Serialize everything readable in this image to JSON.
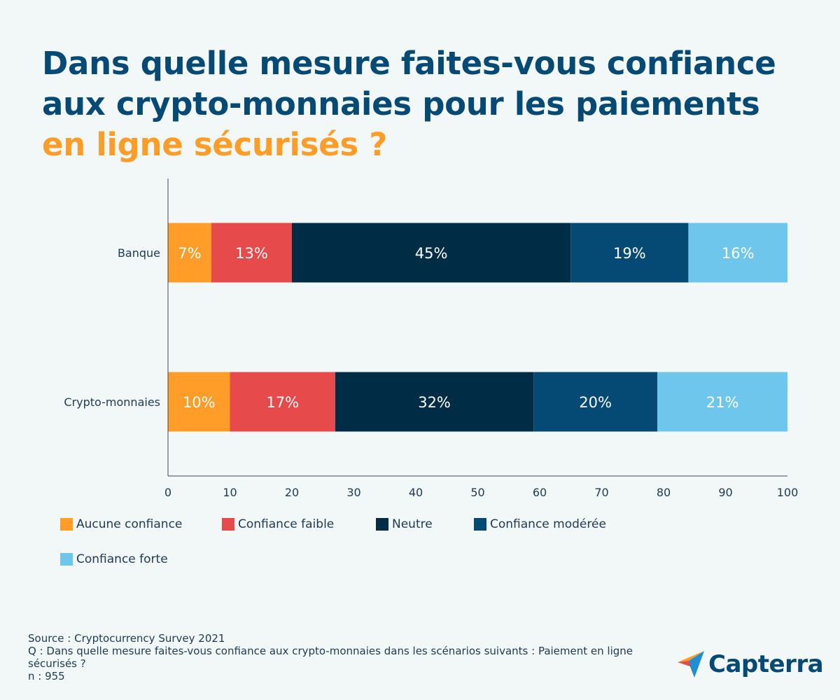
{
  "title": {
    "line1": "Dans quelle mesure faites-vous confiance",
    "line2": "aux crypto-monnaies pour les paiements",
    "line3": "en ligne sécurisés ?"
  },
  "colors": {
    "title": "#044a75",
    "accent": "#ff9d28",
    "background": "#f2f7f8"
  },
  "chart_data": {
    "type": "bar",
    "orientation": "horizontal",
    "stacked": true,
    "categories": [
      "Banque",
      "Crypto-monnaies"
    ],
    "series": [
      {
        "name": "Aucune confiance",
        "color": "#ff9d28",
        "values": [
          7,
          10
        ],
        "labels": [
          "7%",
          "10%"
        ]
      },
      {
        "name": "Confiance faible",
        "color": "#e64a4a",
        "values": [
          13,
          17
        ],
        "labels": [
          "13%",
          "17%"
        ]
      },
      {
        "name": "Neutre",
        "color": "#002d45",
        "values": [
          45,
          32
        ],
        "labels": [
          "45%",
          "32%"
        ]
      },
      {
        "name": "Confiance modérée",
        "color": "#044a75",
        "values": [
          19,
          20
        ],
        "labels": [
          "19%",
          "20%"
        ]
      },
      {
        "name": "Confiance forte",
        "color": "#6ec6ed",
        "values": [
          16,
          21
        ],
        "labels": [
          "16%",
          "21%"
        ]
      }
    ],
    "xlim": [
      0,
      100
    ],
    "xticks": [
      "0",
      "10",
      "20",
      "30",
      "40",
      "50",
      "60",
      "70",
      "80",
      "90",
      "100"
    ],
    "grid": false,
    "legend": "bottom"
  },
  "footer": {
    "source": "Source : Cryptocurrency Survey 2021",
    "question": "Q : Dans quelle mesure faites-vous confiance aux crypto-monnaies dans les scénarios suivants : Paiement en ligne sécurisés ?",
    "sample": "n : 955"
  },
  "logo": {
    "text": "Capterra",
    "icon": "capterra-arrow-icon"
  }
}
